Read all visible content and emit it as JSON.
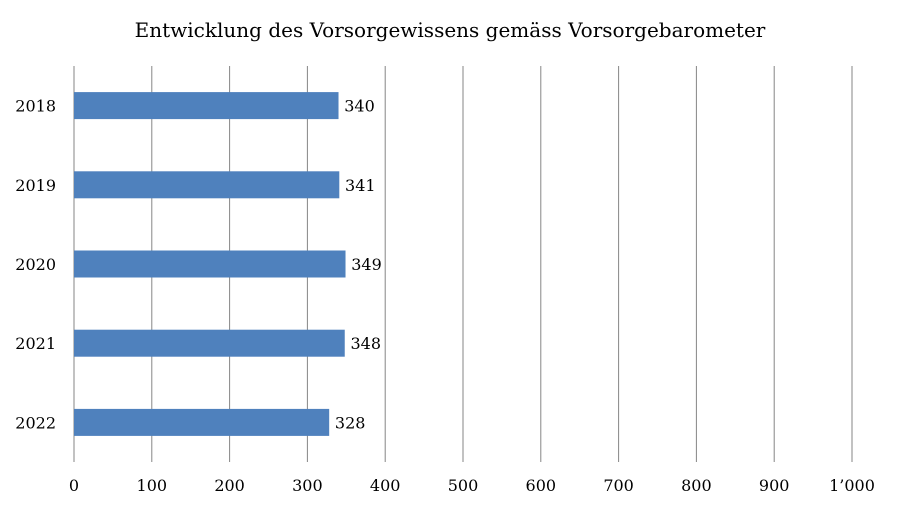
{
  "chart_data": {
    "type": "bar",
    "orientation": "horizontal",
    "title": "Entwicklung des Vorsorgewissens gemäss Vorsorgebarometer",
    "xlabel": "",
    "ylabel": "",
    "categories": [
      "2018",
      "2019",
      "2020",
      "2021",
      "2022"
    ],
    "values": [
      340,
      341,
      349,
      348,
      328
    ],
    "data_labels": [
      "340",
      "341",
      "349",
      "348",
      "328"
    ],
    "xlim": [
      0,
      1000
    ],
    "xticks": [
      0,
      100,
      200,
      300,
      400,
      500,
      600,
      700,
      800,
      900,
      1000
    ],
    "xtick_labels": [
      "0",
      "100",
      "200",
      "300",
      "400",
      "500",
      "600",
      "700",
      "800",
      "900",
      "1’000"
    ],
    "grid": "vertical",
    "legend": "none",
    "colors": {
      "bar": "#4F81BD",
      "grid": "#868686"
    }
  }
}
